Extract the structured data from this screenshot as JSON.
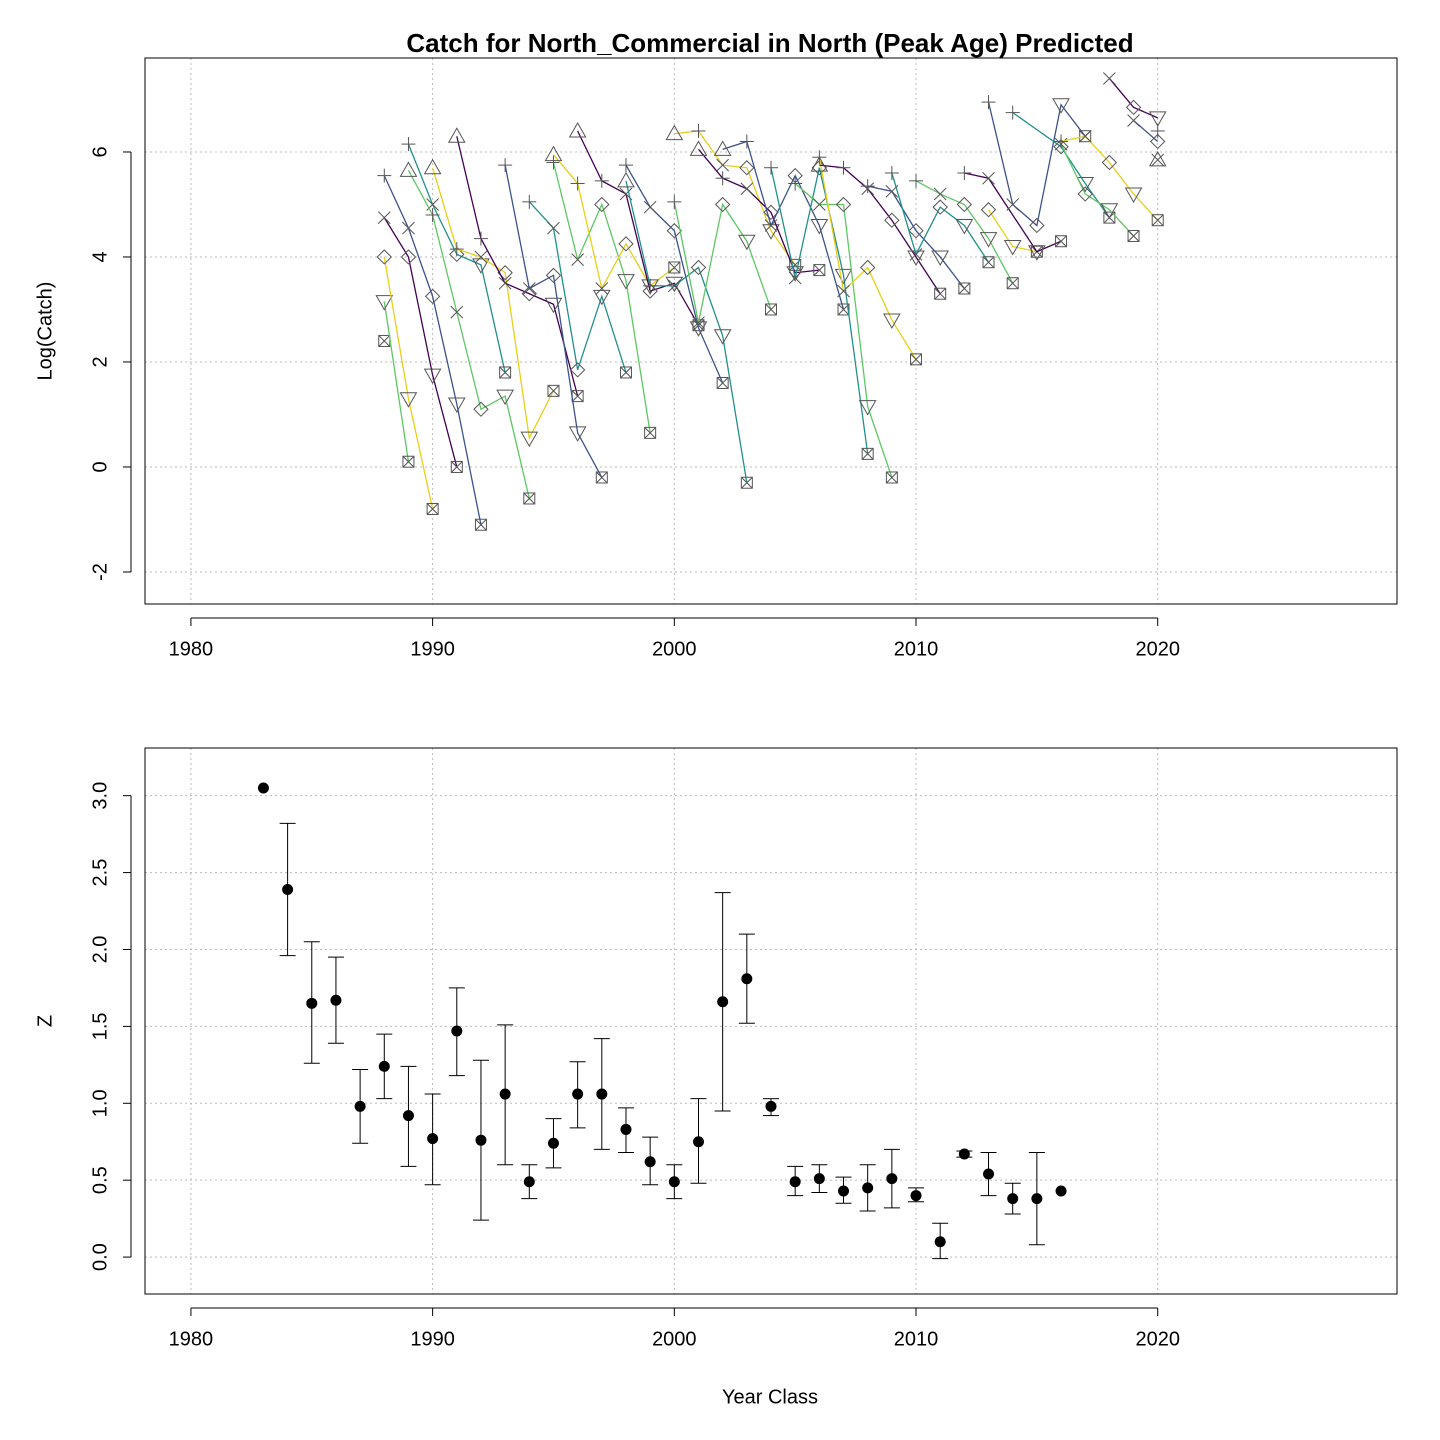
{
  "chart_data": [
    {
      "type": "line",
      "title": "Catch for North_Commercial in North (Peak Age) Predicted",
      "y_label": "Log(Catch)",
      "xlim": [
        1978.1,
        2029.9
      ],
      "ylim": [
        -2.61,
        7.79
      ],
      "xticks": [
        1980,
        1990,
        2000,
        2010,
        2020
      ],
      "yticks": [
        -2,
        0,
        2,
        4,
        6
      ],
      "grid": true,
      "series": [
        {
          "color": "#21908c",
          "x": [
            1988
          ],
          "values": [
            2.4
          ],
          "markers": [
            "bx"
          ]
        },
        {
          "color": "#5dc863",
          "x": [
            1988,
            1989
          ],
          "values": [
            3.15,
            0.1
          ],
          "markers": [
            "td",
            "bx"
          ]
        },
        {
          "color": "#e8cf1a",
          "x": [
            1988,
            1989,
            1990
          ],
          "values": [
            4.0,
            1.3,
            -0.8
          ],
          "markers": [
            "d",
            "td",
            "bx"
          ]
        },
        {
          "color": "#440154",
          "x": [
            1988,
            1989,
            1990,
            1991
          ],
          "values": [
            4.75,
            4.0,
            1.75,
            0.0
          ],
          "markers": [
            "x",
            "d",
            "td",
            "bx"
          ]
        },
        {
          "color": "#3b528b",
          "x": [
            1988,
            1989,
            1990,
            1991,
            1992
          ],
          "values": [
            5.55,
            4.55,
            3.25,
            1.2,
            -1.1
          ],
          "markers": [
            "p",
            "x",
            "d",
            "td",
            "bx"
          ]
        },
        {
          "color": "#21908c",
          "x": [
            1989,
            1990,
            1991,
            1992,
            1993
          ],
          "values": [
            6.15,
            5.0,
            4.05,
            3.85,
            1.8
          ],
          "markers": [
            "p",
            "x",
            "d",
            "td",
            "bx"
          ]
        },
        {
          "color": "#5dc863",
          "x": [
            1989,
            1990,
            1991,
            1992,
            1993,
            1994
          ],
          "values": [
            5.65,
            4.8,
            2.95,
            1.1,
            1.35,
            -0.6
          ],
          "markers": [
            "tu",
            "p",
            "x",
            "d",
            "td",
            "bx"
          ]
        },
        {
          "color": "#e8cf1a",
          "x": [
            1990,
            1991,
            1992,
            1993,
            1994,
            1995
          ],
          "values": [
            5.7,
            4.15,
            4.0,
            3.7,
            0.55,
            1.45
          ],
          "markers": [
            "tu",
            "p",
            "x",
            "d",
            "td",
            "bx"
          ]
        },
        {
          "color": "#440154",
          "x": [
            1991,
            1992,
            1993,
            1994,
            1995,
            1996
          ],
          "values": [
            6.3,
            4.35,
            3.5,
            3.3,
            3.1,
            1.35
          ],
          "markers": [
            "tu",
            "p",
            "x",
            "d",
            "td",
            "bx"
          ]
        },
        {
          "color": "#3b528b",
          "x": [
            1993,
            1994,
            1995,
            1996,
            1997
          ],
          "values": [
            5.75,
            3.4,
            3.65,
            0.65,
            -0.2
          ],
          "markers": [
            "p",
            "x",
            "d",
            "td",
            "bx"
          ]
        },
        {
          "color": "#21908c",
          "x": [
            1994,
            1995,
            1996,
            1997,
            1998
          ],
          "values": [
            5.05,
            4.55,
            1.85,
            3.25,
            1.8
          ],
          "markers": [
            "p",
            "x",
            "d",
            "td",
            "bx"
          ]
        },
        {
          "color": "#5dc863",
          "x": [
            1995,
            1996,
            1997,
            1998,
            1999
          ],
          "values": [
            5.8,
            3.95,
            5.0,
            3.55,
            0.65
          ],
          "markers": [
            "p",
            "x",
            "d",
            "td",
            "bx"
          ]
        },
        {
          "color": "#e8cf1a",
          "x": [
            1995,
            1996,
            1997,
            1998,
            1999,
            2000
          ],
          "values": [
            5.95,
            5.4,
            3.4,
            4.25,
            3.45,
            3.8
          ],
          "markers": [
            "tu",
            "p",
            "x",
            "d",
            "td",
            "bx"
          ]
        },
        {
          "color": "#440154",
          "x": [
            1996,
            1997,
            1998,
            1999,
            2000,
            2001
          ],
          "values": [
            6.4,
            5.45,
            5.2,
            3.35,
            3.5,
            2.7
          ],
          "markers": [
            "tu",
            "p",
            "x",
            "d",
            "td",
            "bx"
          ]
        },
        {
          "color": "#3b528b",
          "x": [
            1998,
            1999,
            2000,
            2001,
            2002
          ],
          "values": [
            5.75,
            4.95,
            4.5,
            2.65,
            1.6
          ],
          "markers": [
            "p",
            "x",
            "d",
            "td",
            "bx"
          ]
        },
        {
          "color": "#21908c",
          "x": [
            1998,
            1999,
            2000,
            2001,
            2002,
            2003
          ],
          "values": [
            5.45,
            3.45,
            3.45,
            3.8,
            2.5,
            -0.3
          ],
          "markers": [
            "tu",
            "p",
            "x",
            "d",
            "td",
            "bx"
          ]
        },
        {
          "color": "#5dc863",
          "x": [
            2000,
            2001,
            2002,
            2003,
            2004
          ],
          "values": [
            5.05,
            2.75,
            5.0,
            4.3,
            3.0
          ],
          "markers": [
            "p",
            "x",
            "d",
            "td",
            "bx"
          ]
        },
        {
          "color": "#e8cf1a",
          "x": [
            2000,
            2001,
            2002,
            2003,
            2004,
            2005
          ],
          "values": [
            6.35,
            6.4,
            5.75,
            5.7,
            4.5,
            3.85
          ],
          "markers": [
            "tu",
            "p",
            "x",
            "d",
            "td",
            "bx"
          ]
        },
        {
          "color": "#440154",
          "x": [
            2001,
            2002,
            2003,
            2004,
            2005,
            2006
          ],
          "values": [
            6.05,
            5.5,
            5.3,
            4.85,
            3.7,
            3.75
          ],
          "markers": [
            "tu",
            "p",
            "x",
            "d",
            "td",
            "bx"
          ]
        },
        {
          "color": "#3b528b",
          "x": [
            2002,
            2003,
            2004,
            2005,
            2006,
            2007
          ],
          "values": [
            6.05,
            6.2,
            4.6,
            5.55,
            4.6,
            3.0
          ],
          "markers": [
            "tu",
            "p",
            "x",
            "d",
            "td",
            "bx"
          ]
        },
        {
          "color": "#21908c",
          "x": [
            2004,
            2005,
            2006,
            2007,
            2008
          ],
          "values": [
            5.7,
            3.6,
            5.7,
            3.65,
            0.25
          ],
          "markers": [
            "p",
            "x",
            "d",
            "td",
            "bx"
          ]
        },
        {
          "color": "#5dc863",
          "x": [
            2005,
            2006,
            2007,
            2008,
            2009
          ],
          "values": [
            5.4,
            5.0,
            5.0,
            1.15,
            -0.2
          ],
          "markers": [
            "p",
            "x",
            "d",
            "td",
            "bx"
          ]
        },
        {
          "color": "#e8cf1a",
          "x": [
            2006,
            2007,
            2008,
            2009,
            2010
          ],
          "values": [
            5.9,
            3.35,
            3.8,
            2.8,
            2.05
          ],
          "markers": [
            "p",
            "x",
            "d",
            "td",
            "bx"
          ]
        },
        {
          "color": "#440154",
          "x": [
            2006,
            2007,
            2008,
            2009,
            2010,
            2011
          ],
          "values": [
            5.75,
            5.7,
            5.3,
            4.7,
            4.0,
            3.3
          ],
          "markers": [
            "tu",
            "p",
            "x",
            "d",
            "td",
            "bx"
          ]
        },
        {
          "color": "#3b528b",
          "x": [
            2008,
            2009,
            2010,
            2011,
            2012
          ],
          "values": [
            5.35,
            5.25,
            4.5,
            4.0,
            3.4
          ],
          "markers": [
            "p",
            "x",
            "d",
            "td",
            "bx"
          ]
        },
        {
          "color": "#21908c",
          "x": [
            2009,
            2010,
            2011,
            2012,
            2013
          ],
          "values": [
            5.6,
            4.05,
            4.95,
            4.6,
            3.9
          ],
          "markers": [
            "p",
            "x",
            "d",
            "td",
            "bx"
          ]
        },
        {
          "color": "#5dc863",
          "x": [
            2010,
            2011,
            2012,
            2013,
            2014
          ],
          "values": [
            5.45,
            5.2,
            5.0,
            4.35,
            3.5
          ],
          "markers": [
            "p",
            "x",
            "d",
            "td",
            "bx"
          ]
        },
        {
          "color": "#e8cf1a",
          "x": [
            2013,
            2014,
            2015
          ],
          "values": [
            4.9,
            4.2,
            4.1
          ],
          "markers": [
            "d",
            "td",
            "bx"
          ]
        },
        {
          "color": "#440154",
          "x": [
            2012,
            2013,
            2015,
            2016
          ],
          "values": [
            5.6,
            5.5,
            4.1,
            4.3
          ],
          "markers": [
            "p",
            "x",
            "td",
            "bx"
          ]
        },
        {
          "color": "#3b528b",
          "x": [
            2013,
            2014,
            2015,
            2016,
            2017
          ],
          "values": [
            6.95,
            5.0,
            4.6,
            6.9,
            6.3
          ],
          "markers": [
            "p",
            "x",
            "d",
            "td",
            "bx"
          ]
        },
        {
          "color": "#21908c",
          "x": [
            2014,
            2016,
            2017,
            2018
          ],
          "values": [
            6.75,
            6.1,
            5.4,
            4.75
          ],
          "markers": [
            "p",
            "d",
            "td",
            "bx"
          ]
        },
        {
          "color": "#5dc863",
          "x": [
            2016,
            2017,
            2018,
            2019
          ],
          "values": [
            6.15,
            5.2,
            4.9,
            4.4
          ],
          "markers": [
            "x",
            "d",
            "td",
            "bx"
          ]
        },
        {
          "color": "#e8cf1a",
          "x": [
            2016,
            2017,
            2018,
            2019,
            2020
          ],
          "values": [
            6.2,
            6.3,
            5.8,
            5.2,
            4.7
          ],
          "markers": [
            "p",
            "x",
            "d",
            "td",
            "bx"
          ]
        },
        {
          "color": "#440154",
          "x": [
            2018,
            2019,
            2020
          ],
          "values": [
            7.4,
            6.85,
            6.65
          ],
          "markers": [
            "x",
            "d",
            "td"
          ]
        },
        {
          "color": "#3b528b",
          "x": [
            2019,
            2020
          ],
          "values": [
            6.6,
            6.2
          ],
          "markers": [
            "x",
            "d"
          ]
        },
        {
          "color": "#21908c",
          "x": [
            2020
          ],
          "values": [
            5.85
          ],
          "markers": [
            "x"
          ]
        },
        {
          "color": "#5dc863",
          "x": [
            2020
          ],
          "values": [
            6.4
          ],
          "markers": [
            "p"
          ]
        },
        {
          "color": "#e8cf1a",
          "x": [
            2020
          ],
          "values": [
            5.85
          ],
          "markers": [
            "tu"
          ]
        }
      ]
    },
    {
      "type": "errorbar",
      "x_label": "Year Class",
      "y_label": "Z",
      "xlim": [
        1978.1,
        2029.9
      ],
      "ylim": [
        -0.24,
        3.31
      ],
      "xticks": [
        1980,
        1990,
        2000,
        2010,
        2020
      ],
      "yticks": [
        {
          "value": 0,
          "label": "0.0"
        },
        {
          "value": 0.5,
          "label": "0.5"
        },
        {
          "value": 1,
          "label": "1.0"
        },
        {
          "value": 1.5,
          "label": "1.5"
        },
        {
          "value": 2,
          "label": "2.0"
        },
        {
          "value": 2.5,
          "label": "2.5"
        },
        {
          "value": 3,
          "label": "3.0"
        }
      ],
      "grid": true,
      "color": "#000000",
      "x": [
        1983,
        1984,
        1985,
        1986,
        1987,
        1988,
        1989,
        1990,
        1991,
        1992,
        1993,
        1994,
        1995,
        1996,
        1997,
        1998,
        1999,
        2000,
        2001,
        2002,
        2003,
        2004,
        2005,
        2006,
        2007,
        2008,
        2009,
        2010,
        2011,
        2012,
        2013,
        2014,
        2015,
        2016
      ],
      "values": [
        3.05,
        2.39,
        1.65,
        1.67,
        0.98,
        1.24,
        0.92,
        0.77,
        1.47,
        0.76,
        1.06,
        0.49,
        0.74,
        1.06,
        1.06,
        0.83,
        0.62,
        0.49,
        0.75,
        1.66,
        1.81,
        0.98,
        0.49,
        0.51,
        0.43,
        0.45,
        0.51,
        0.4,
        0.1,
        0.67,
        0.54,
        0.38,
        0.38,
        0.43
      ],
      "ci_low": [
        null,
        1.96,
        1.26,
        1.39,
        0.74,
        1.03,
        0.59,
        0.47,
        1.18,
        0.24,
        0.6,
        0.38,
        0.58,
        0.84,
        0.7,
        0.68,
        0.47,
        0.38,
        0.48,
        0.95,
        1.52,
        0.92,
        0.4,
        0.42,
        0.35,
        0.3,
        0.32,
        0.36,
        -0.01,
        0.65,
        0.4,
        0.28,
        0.08,
        null
      ],
      "ci_high": [
        null,
        2.82,
        2.05,
        1.95,
        1.22,
        1.45,
        1.24,
        1.06,
        1.75,
        1.28,
        1.51,
        0.6,
        0.9,
        1.27,
        1.42,
        0.97,
        0.78,
        0.6,
        1.03,
        2.37,
        2.1,
        1.03,
        0.59,
        0.6,
        0.52,
        0.6,
        0.7,
        0.45,
        0.22,
        0.69,
        0.68,
        0.48,
        0.68,
        null
      ]
    }
  ]
}
